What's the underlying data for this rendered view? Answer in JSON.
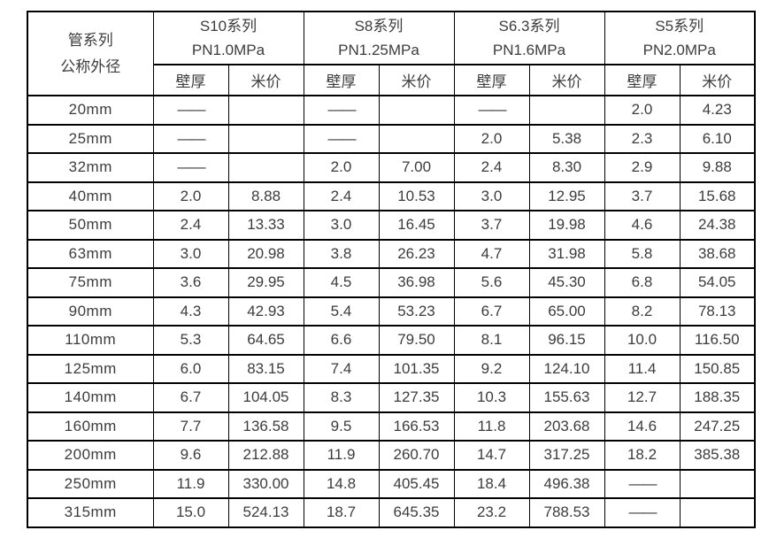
{
  "table": {
    "corner_header": {
      "line1": "管系列",
      "line2": "公称外径"
    },
    "series": [
      {
        "name": "S10系列",
        "pressure": "PN1.0MPa"
      },
      {
        "name": "S8系列",
        "pressure": "PN1.25MPa"
      },
      {
        "name": "S6.3系列",
        "pressure": "PN1.6MPa"
      },
      {
        "name": "S5系列",
        "pressure": "PN2.0MPa"
      }
    ],
    "subheaders": {
      "thickness": "壁厚",
      "price": "米价"
    },
    "rows": [
      {
        "size": "20mm",
        "cells": [
          "——",
          "",
          "——",
          "",
          "——",
          "",
          "2.0",
          "4.23"
        ]
      },
      {
        "size": "25mm",
        "cells": [
          "——",
          "",
          "——",
          "",
          "2.0",
          "5.38",
          "2.3",
          "6.10"
        ]
      },
      {
        "size": "32mm",
        "cells": [
          "——",
          "",
          "2.0",
          "7.00",
          "2.4",
          "8.30",
          "2.9",
          "9.88"
        ]
      },
      {
        "size": "40mm",
        "cells": [
          "2.0",
          "8.88",
          "2.4",
          "10.53",
          "3.0",
          "12.95",
          "3.7",
          "15.68"
        ]
      },
      {
        "size": "50mm",
        "cells": [
          "2.4",
          "13.33",
          "3.0",
          "16.45",
          "3.7",
          "19.98",
          "4.6",
          "24.38"
        ]
      },
      {
        "size": "63mm",
        "cells": [
          "3.0",
          "20.98",
          "3.8",
          "26.23",
          "4.7",
          "31.98",
          "5.8",
          "38.68"
        ]
      },
      {
        "size": "75mm",
        "cells": [
          "3.6",
          "29.95",
          "4.5",
          "36.98",
          "5.6",
          "45.30",
          "6.8",
          "54.05"
        ]
      },
      {
        "size": "90mm",
        "cells": [
          "4.3",
          "42.93",
          "5.4",
          "53.23",
          "6.7",
          "65.00",
          "8.2",
          "78.13"
        ]
      },
      {
        "size": "110mm",
        "cells": [
          "5.3",
          "64.65",
          "6.6",
          "79.50",
          "8.1",
          "96.15",
          "10.0",
          "116.50"
        ]
      },
      {
        "size": "125mm",
        "cells": [
          "6.0",
          "83.15",
          "7.4",
          "101.35",
          "9.2",
          "124.10",
          "11.4",
          "150.85"
        ]
      },
      {
        "size": "140mm",
        "cells": [
          "6.7",
          "104.05",
          "8.3",
          "127.35",
          "10.3",
          "155.63",
          "12.7",
          "188.35"
        ]
      },
      {
        "size": "160mm",
        "cells": [
          "7.7",
          "136.58",
          "9.5",
          "166.53",
          "11.8",
          "203.68",
          "14.6",
          "247.25"
        ]
      },
      {
        "size": "200mm",
        "cells": [
          "9.6",
          "212.88",
          "11.9",
          "260.70",
          "14.7",
          "317.25",
          "18.2",
          "385.38"
        ]
      },
      {
        "size": "250mm",
        "cells": [
          "11.9",
          "330.00",
          "14.8",
          "405.45",
          "18.4",
          "496.38",
          "——",
          ""
        ]
      },
      {
        "size": "315mm",
        "cells": [
          "15.0",
          "524.13",
          "18.7",
          "645.35",
          "23.2",
          "788.53",
          "——",
          ""
        ]
      }
    ]
  }
}
